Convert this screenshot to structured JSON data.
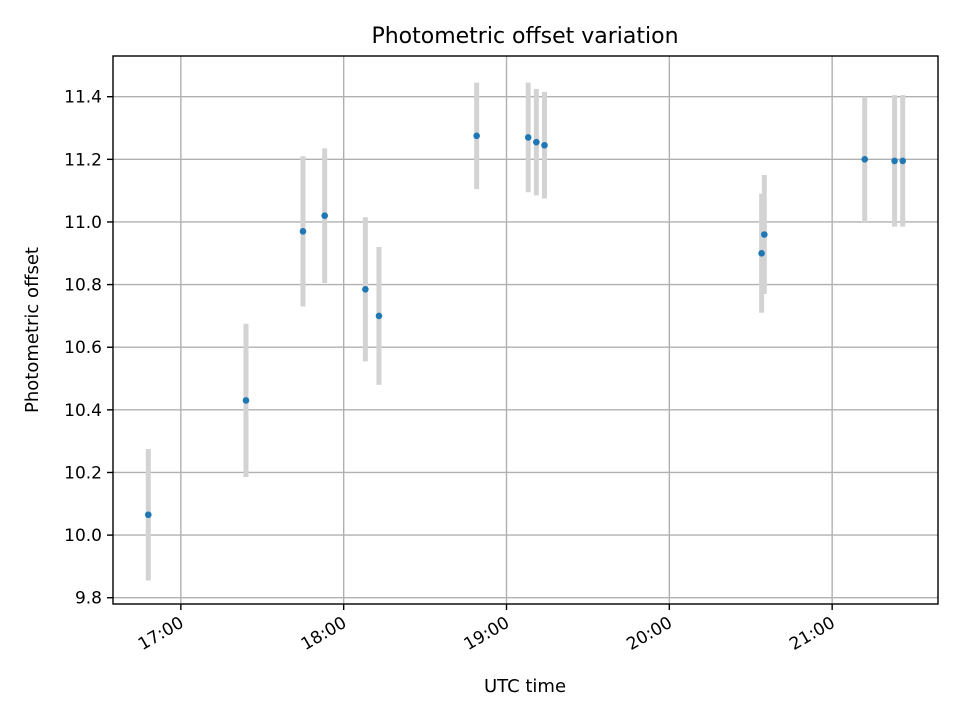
{
  "chart_data": {
    "type": "scatter",
    "title": "Photometric offset variation",
    "xlabel": "UTC time",
    "ylabel": "Photometric offset",
    "x_axis_type": "time",
    "xlim": [
      "16:35",
      "21:39"
    ],
    "ylim": [
      9.78,
      11.53
    ],
    "x_ticks": [
      "17:00",
      "18:00",
      "19:00",
      "20:00",
      "21:00"
    ],
    "y_ticks": [
      "9.8",
      "10.0",
      "10.2",
      "10.4",
      "10.6",
      "10.8",
      "11.0",
      "11.2",
      "11.4"
    ],
    "grid": true,
    "legend": "none",
    "marker_color": "#1f77b4",
    "errorbar_color": "#d3d3d3",
    "points": [
      {
        "x": "16:48",
        "y": 10.065,
        "err": 0.21
      },
      {
        "x": "17:24",
        "y": 10.43,
        "err": 0.245
      },
      {
        "x": "17:45",
        "y": 10.97,
        "err": 0.24
      },
      {
        "x": "17:53",
        "y": 11.02,
        "err": 0.215
      },
      {
        "x": "18:08",
        "y": 10.785,
        "err": 0.23
      },
      {
        "x": "18:13",
        "y": 10.7,
        "err": 0.22
      },
      {
        "x": "18:49",
        "y": 11.275,
        "err": 0.17
      },
      {
        "x": "19:08",
        "y": 11.27,
        "err": 0.175
      },
      {
        "x": "19:11",
        "y": 11.255,
        "err": 0.17
      },
      {
        "x": "19:14",
        "y": 11.245,
        "err": 0.17
      },
      {
        "x": "20:34",
        "y": 10.9,
        "err": 0.19
      },
      {
        "x": "20:35",
        "y": 10.96,
        "err": 0.19
      },
      {
        "x": "21:12",
        "y": 11.2,
        "err": 0.2
      },
      {
        "x": "21:23",
        "y": 11.195,
        "err": 0.21
      },
      {
        "x": "21:26",
        "y": 11.195,
        "err": 0.21
      }
    ]
  }
}
